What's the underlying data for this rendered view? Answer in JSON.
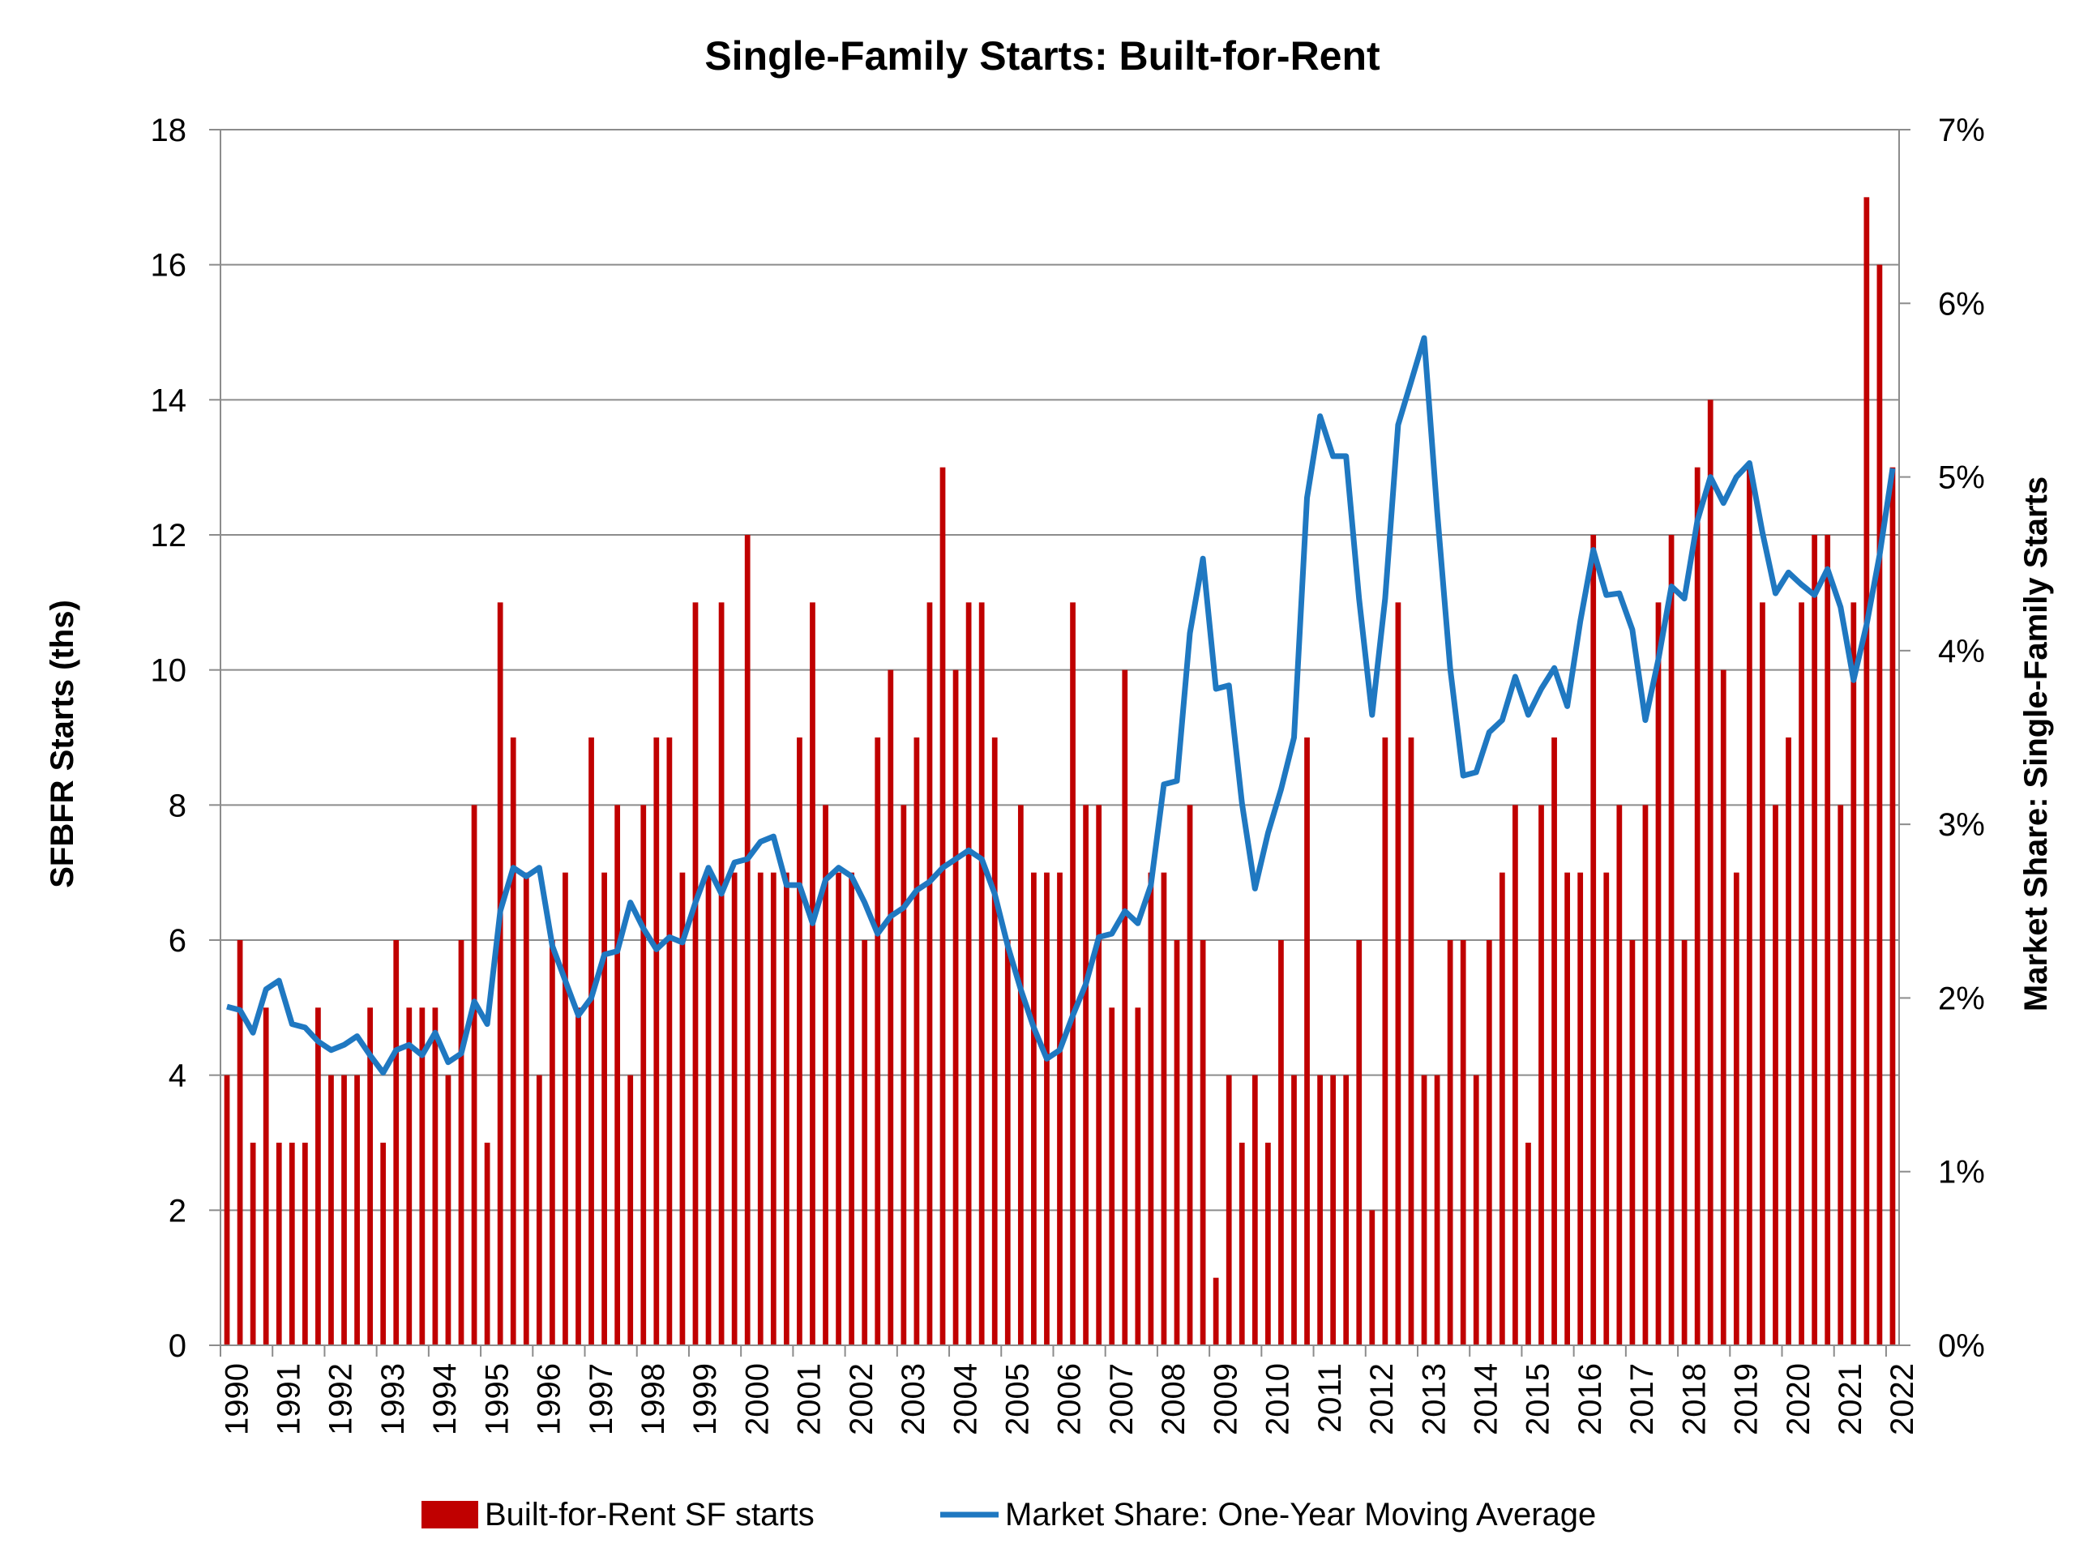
{
  "chart_data": {
    "type": "bar",
    "title": "Single-Family Starts: Built-for-Rent",
    "ylabel": "SFBFR Starts (ths)",
    "y2label": "Market Share: Single-Family Starts",
    "ylim": [
      0,
      18
    ],
    "y2lim": [
      0,
      7
    ],
    "yticks": [
      "0",
      "2",
      "4",
      "6",
      "8",
      "10",
      "12",
      "14",
      "16",
      "18"
    ],
    "y2ticks": [
      "0%",
      "1%",
      "2%",
      "3%",
      "4%",
      "5%",
      "6%",
      "7%"
    ],
    "xtick_labels": [
      "1990",
      "1991",
      "1992",
      "1993",
      "1994",
      "1995",
      "1996",
      "1997",
      "1998",
      "1999",
      "2000",
      "2001",
      "2002",
      "2003",
      "2004",
      "2005",
      "2006",
      "2007",
      "2008",
      "2009",
      "2010",
      "2011",
      "2012",
      "2013",
      "2014",
      "2015",
      "2016",
      "2017",
      "2018",
      "2019",
      "2020",
      "2021",
      "2022"
    ],
    "grid": true,
    "legend_position": "bottom",
    "series": [
      {
        "name": "Built-for-Rent SF starts",
        "type": "bar",
        "axis": "left",
        "color": "#c00000",
        "values": [
          4,
          6,
          3,
          5,
          3,
          3,
          3,
          5,
          4,
          4,
          4,
          5,
          3,
          6,
          5,
          5,
          5,
          4,
          6,
          8,
          3,
          11,
          9,
          7,
          4,
          6,
          7,
          5,
          9,
          7,
          8,
          4,
          8,
          9,
          9,
          7,
          11,
          7,
          11,
          7,
          12,
          7,
          7,
          7,
          9,
          11,
          8,
          7,
          7,
          6,
          9,
          10,
          8,
          9,
          11,
          13,
          10,
          11,
          11,
          9,
          6,
          8,
          7,
          7,
          7,
          11,
          8,
          8,
          5,
          10,
          5,
          7,
          7,
          6,
          8,
          6,
          1,
          4,
          3,
          4,
          3,
          6,
          4,
          9,
          4,
          4,
          4,
          6,
          2,
          9,
          11,
          9,
          4,
          4,
          6,
          6,
          4,
          6,
          7,
          8,
          3,
          8,
          9,
          7,
          7,
          12,
          7,
          8,
          6,
          8,
          11,
          12,
          6,
          13,
          14,
          10,
          7,
          13,
          11,
          8,
          9,
          11,
          12,
          12,
          8,
          11,
          17,
          16,
          13
        ]
      },
      {
        "name": "Market Share: One-Year Moving Average",
        "type": "line",
        "axis": "right",
        "color": "#1f78c1",
        "values": [
          1.95,
          1.93,
          1.8,
          2.05,
          2.1,
          1.85,
          1.83,
          1.75,
          1.7,
          1.73,
          1.78,
          1.67,
          1.57,
          1.7,
          1.73,
          1.67,
          1.8,
          1.63,
          1.68,
          1.98,
          1.85,
          2.5,
          2.75,
          2.7,
          2.75,
          2.3,
          2.1,
          1.9,
          2.0,
          2.25,
          2.27,
          2.55,
          2.4,
          2.28,
          2.35,
          2.32,
          2.55,
          2.75,
          2.6,
          2.78,
          2.8,
          2.9,
          2.93,
          2.65,
          2.65,
          2.43,
          2.68,
          2.75,
          2.7,
          2.55,
          2.37,
          2.47,
          2.52,
          2.62,
          2.67,
          2.75,
          2.8,
          2.85,
          2.8,
          2.6,
          2.3,
          2.05,
          1.83,
          1.65,
          1.7,
          1.9,
          2.08,
          2.35,
          2.37,
          2.5,
          2.43,
          2.65,
          3.23,
          3.25,
          4.1,
          4.53,
          3.78,
          3.8,
          3.12,
          2.63,
          2.95,
          3.2,
          3.5,
          4.88,
          5.35,
          5.12,
          5.12,
          4.3,
          3.63,
          4.3,
          5.3,
          5.55,
          5.8,
          4.8,
          3.9,
          3.28,
          3.3,
          3.53,
          3.6,
          3.85,
          3.63,
          3.78,
          3.9,
          3.68,
          4.17,
          4.58,
          4.32,
          4.33,
          4.12,
          3.6,
          3.95,
          4.37,
          4.3,
          4.75,
          5.0,
          4.85,
          5.0,
          5.08,
          4.68,
          4.33,
          4.45,
          4.38,
          4.32,
          4.47,
          4.25,
          3.83,
          4.15,
          4.55,
          5.05
        ]
      }
    ]
  }
}
